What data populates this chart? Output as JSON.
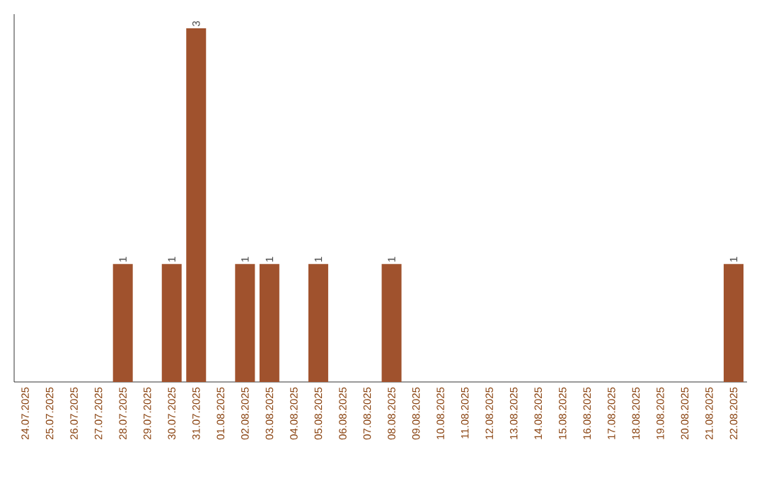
{
  "chart_data": {
    "type": "bar",
    "categories": [
      "24.07.2025",
      "25.07.2025",
      "26.07.2025",
      "27.07.2025",
      "28.07.2025",
      "29.07.2025",
      "30.07.2025",
      "31.07.2025",
      "01.08.2025",
      "02.08.2025",
      "03.08.2025",
      "04.08.2025",
      "05.08.2025",
      "06.08.2025",
      "07.08.2025",
      "08.08.2025",
      "09.08.2025",
      "10.08.2025",
      "11.08.2025",
      "12.08.2025",
      "13.08.2025",
      "14.08.2025",
      "15.08.2025",
      "16.08.2025",
      "17.08.2025",
      "18.08.2025",
      "19.08.2025",
      "20.08.2025",
      "21.08.2025",
      "22.08.2025"
    ],
    "values": [
      0,
      0,
      0,
      0,
      1,
      0,
      1,
      3,
      0,
      1,
      1,
      0,
      1,
      0,
      0,
      1,
      0,
      0,
      0,
      0,
      0,
      0,
      0,
      0,
      0,
      0,
      0,
      0,
      0,
      1
    ],
    "value_labels": [
      null,
      null,
      null,
      null,
      "1",
      null,
      "1",
      "3",
      null,
      "1",
      "1",
      null,
      "1",
      null,
      null,
      "1",
      null,
      null,
      null,
      null,
      null,
      null,
      null,
      null,
      null,
      null,
      null,
      null,
      null,
      "1"
    ],
    "color": "#a0522d"
  }
}
